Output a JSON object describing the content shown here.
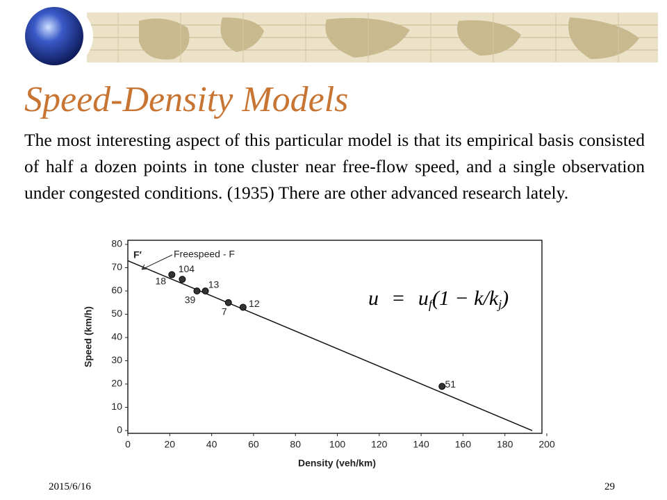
{
  "slide": {
    "title": "Speed-Density Models",
    "body": "The most interesting aspect of this particular model is that its empirical basis consisted of half a dozen points in tone cluster near free-flow speed, and a single observation under congested conditions. (1935) There are other advanced research lately.",
    "date": "2015/6/16",
    "page": "29"
  },
  "chart_data": {
    "type": "scatter",
    "x_label": "Density (veh/km)",
    "y_label": "Speed (km/h)",
    "xlim": [
      0,
      200
    ],
    "ylim": [
      0,
      80
    ],
    "xticks": [
      0,
      20,
      40,
      60,
      80,
      100,
      120,
      140,
      160,
      180,
      200
    ],
    "yticks": [
      0,
      10,
      20,
      30,
      40,
      50,
      60,
      70,
      80
    ],
    "points": {
      "x": [
        21,
        26,
        33,
        37,
        48,
        55,
        150
      ],
      "y": [
        67,
        65,
        60,
        60,
        55,
        53,
        19
      ],
      "labels": [
        18,
        104,
        39,
        13,
        7,
        12,
        51
      ]
    },
    "fit_line": {
      "x": [
        0,
        193
      ],
      "y": [
        73,
        0
      ]
    },
    "annotations": {
      "f_prime": "F′",
      "freespeed": "Freespeed - F"
    },
    "equation": {
      "lhs": "u",
      "eq": "=",
      "rhs": "u",
      "rhs_sub": "f",
      "body": "(1 − k/k",
      "body_sub": "j",
      "close": ")"
    }
  }
}
